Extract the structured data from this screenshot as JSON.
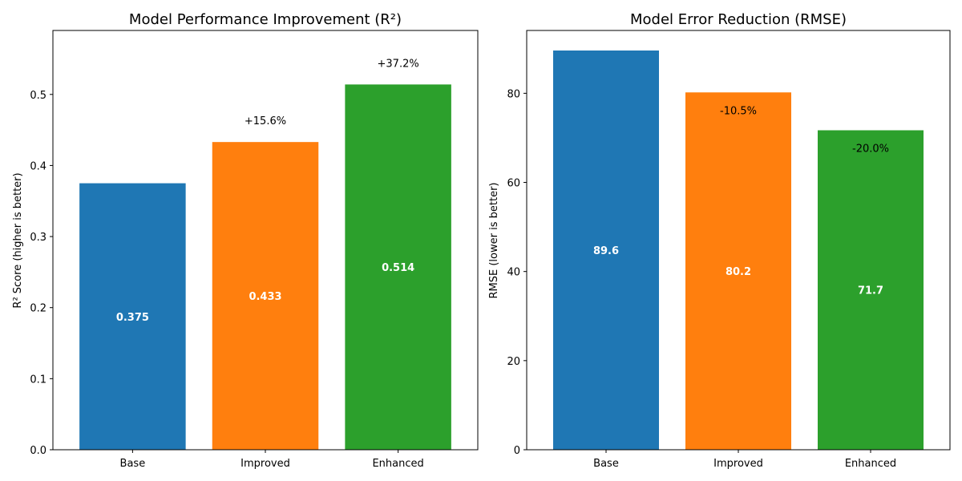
{
  "chart_data": [
    {
      "type": "bar",
      "title": "Model Performance Improvement (R²)",
      "xlabel": "",
      "ylabel": "R² Score (higher is better)",
      "categories": [
        "Base",
        "Improved",
        "Enhanced"
      ],
      "values": [
        0.375,
        0.433,
        0.514
      ],
      "value_labels": [
        "0.375",
        "0.433",
        "0.514"
      ],
      "change_labels": [
        "",
        "+15.6%",
        "+37.2%"
      ],
      "colors": [
        "#1f77b4",
        "#ff7f0e",
        "#2ca02c"
      ],
      "ylim": [
        0,
        0.59
      ],
      "yticks": [
        0.0,
        0.1,
        0.2,
        0.3,
        0.4,
        0.5
      ],
      "ytick_labels": [
        "0.0",
        "0.1",
        "0.2",
        "0.3",
        "0.4",
        "0.5"
      ],
      "grid": false,
      "legend": "none"
    },
    {
      "type": "bar",
      "title": "Model Error Reduction (RMSE)",
      "xlabel": "",
      "ylabel": "RMSE (lower is better)",
      "categories": [
        "Base",
        "Improved",
        "Enhanced"
      ],
      "values": [
        89.6,
        80.2,
        71.7
      ],
      "value_labels": [
        "89.6",
        "80.2",
        "71.7"
      ],
      "change_labels": [
        "",
        "-10.5%",
        "-20.0%"
      ],
      "colors": [
        "#1f77b4",
        "#ff7f0e",
        "#2ca02c"
      ],
      "ylim": [
        0,
        94.1
      ],
      "yticks": [
        0,
        20,
        40,
        60,
        80
      ],
      "ytick_labels": [
        "0",
        "20",
        "40",
        "60",
        "80"
      ],
      "grid": false,
      "legend": "none"
    }
  ]
}
